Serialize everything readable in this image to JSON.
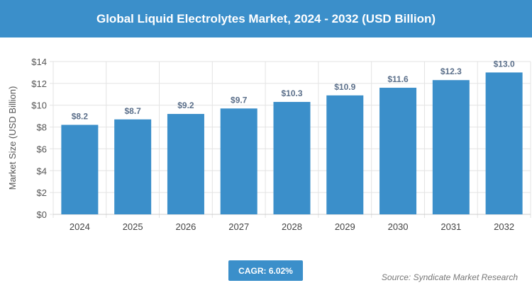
{
  "header": {
    "title": "Global Liquid Electrolytes Market, 2024 - 2032 (USD Billion)"
  },
  "chart_data": {
    "type": "bar",
    "title": "Global Liquid Electrolytes Market, 2024 - 2032 (USD Billion)",
    "categories": [
      "2024",
      "2025",
      "2026",
      "2027",
      "2028",
      "2029",
      "2030",
      "2031",
      "2032"
    ],
    "values": [
      8.2,
      8.7,
      9.2,
      9.7,
      10.3,
      10.9,
      11.6,
      12.3,
      13.0
    ],
    "data_labels": [
      "$8.2",
      "$8.7",
      "$9.2",
      "$9.7",
      "$10.3",
      "$10.9",
      "$11.6",
      "$12.3",
      "$13.0"
    ],
    "xlabel": "",
    "ylabel": "Market Size (USD Billion)",
    "ylim": [
      0,
      14
    ],
    "yticks": [
      0,
      2,
      4,
      6,
      8,
      10,
      12,
      14
    ],
    "ytick_labels": [
      "$0",
      "$2",
      "$4",
      "$6",
      "$8",
      "$10",
      "$12",
      "$14"
    ],
    "grid": true,
    "bar_color": "#3b8fca"
  },
  "cagr": {
    "label": "CAGR: 6.02%"
  },
  "source": {
    "text": "Source: Syndicate Market Research"
  }
}
